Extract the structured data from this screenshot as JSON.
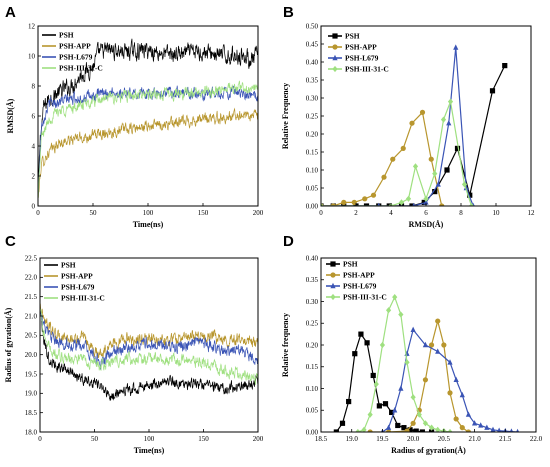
{
  "panels": [
    {
      "id": "A",
      "chart_data": {
        "type": "line",
        "xlabel": "Time(ns)",
        "ylabel": "RMSD(Å)",
        "xlim": [
          0,
          200
        ],
        "ylim": [
          0,
          12
        ],
        "xticks": [
          0,
          50,
          100,
          150,
          200
        ],
        "yticks": [
          0,
          2,
          4,
          6,
          8,
          10,
          12
        ],
        "legend_position": "top-left",
        "grid": false,
        "series": [
          {
            "name": "PSH",
            "color": "#000000",
            "noise": 0.45,
            "x": [
              0,
              2,
              5,
              10,
              20,
              30,
              40,
              50,
              55,
              65,
              80,
              100,
              120,
              150,
              170,
              185,
              195,
              200
            ],
            "y": [
              0.5,
              4.5,
              6.5,
              7.2,
              7.6,
              8.0,
              8.8,
              9.3,
              10.2,
              10.4,
              10.3,
              10.4,
              10.1,
              10.3,
              10.0,
              10.1,
              9.7,
              10.2
            ]
          },
          {
            "name": "PSH-APP",
            "color": "#b8962e",
            "noise": 0.3,
            "x": [
              0,
              3,
              10,
              20,
              35,
              50,
              60,
              80,
              100,
              120,
              150,
              170,
              185,
              200
            ],
            "y": [
              0.4,
              2.8,
              3.6,
              4.2,
              4.5,
              4.7,
              4.9,
              5.1,
              5.3,
              5.5,
              5.8,
              5.9,
              6.1,
              6.0
            ]
          },
          {
            "name": "PSH-L679",
            "color": "#3a54b5",
            "noise": 0.3,
            "x": [
              0,
              3,
              10,
              20,
              35,
              50,
              65,
              80,
              100,
              120,
              150,
              170,
              185,
              200
            ],
            "y": [
              0.4,
              5.5,
              6.8,
              7.0,
              7.2,
              7.3,
              7.6,
              7.5,
              7.5,
              7.6,
              7.5,
              7.6,
              7.4,
              7.3
            ]
          },
          {
            "name": "PSH-III-31-C",
            "color": "#9fe080",
            "noise": 0.3,
            "x": [
              0,
              3,
              10,
              20,
              35,
              50,
              65,
              80,
              100,
              120,
              150,
              170,
              185,
              200
            ],
            "y": [
              0.4,
              4.5,
              5.8,
              6.4,
              6.6,
              6.9,
              7.2,
              7.3,
              7.4,
              7.5,
              7.6,
              7.8,
              7.9,
              7.8
            ]
          }
        ]
      }
    },
    {
      "id": "B",
      "chart_data": {
        "type": "line",
        "xlabel": "RMSD(Å)",
        "ylabel": "Relative Frequency",
        "xlim": [
          0,
          12
        ],
        "ylim": [
          0,
          0.5
        ],
        "xticks": [
          0,
          2,
          4,
          6,
          8,
          10,
          12
        ],
        "yticks": [
          0.0,
          0.05,
          0.1,
          0.15,
          0.2,
          0.25,
          0.3,
          0.35,
          0.4,
          0.45,
          0.5
        ],
        "legend_position": "top-left",
        "grid": false,
        "series": [
          {
            "name": "PSH",
            "color": "#000000",
            "marker": "square",
            "x": [
              0.0,
              0.7,
              1.3,
              2.0,
              2.6,
              3.3,
              3.9,
              4.6,
              5.2,
              5.9,
              6.5,
              7.2,
              7.8,
              8.5,
              9.8,
              10.5
            ],
            "y": [
              0,
              0,
              0,
              0,
              0,
              0,
              0,
              0,
              0,
              0.01,
              0.04,
              0.1,
              0.16,
              0.03,
              0.32,
              0.39
            ]
          },
          {
            "name": "PSH-APP",
            "color": "#b8962e",
            "marker": "circle",
            "x": [
              0.0,
              0.7,
              1.3,
              1.9,
              2.5,
              3.0,
              3.6,
              4.1,
              4.7,
              5.2,
              5.8,
              6.3,
              6.9
            ],
            "y": [
              0,
              0,
              0.01,
              0.01,
              0.02,
              0.03,
              0.08,
              0.13,
              0.16,
              0.23,
              0.26,
              0.13,
              0
            ]
          },
          {
            "name": "PSH-L679",
            "color": "#3a54b5",
            "marker": "triangle",
            "x": [
              0.0,
              3.3,
              4.0,
              5.3,
              6.0,
              6.7,
              7.3,
              7.7,
              8.3,
              8.7
            ],
            "y": [
              0,
              0,
              0,
              0,
              0.01,
              0.06,
              0.23,
              0.44,
              0.05,
              0
            ]
          },
          {
            "name": "PSH-III-31-C",
            "color": "#9fe080",
            "marker": "diamond",
            "x": [
              0.0,
              4.0,
              4.6,
              5.0,
              5.4,
              6.0,
              6.5,
              7.0,
              7.4,
              8.2,
              8.6
            ],
            "y": [
              0,
              0,
              0.01,
              0.02,
              0.11,
              0.02,
              0.09,
              0.24,
              0.29,
              0.06,
              0
            ]
          }
        ]
      }
    },
    {
      "id": "C",
      "chart_data": {
        "type": "line",
        "xlabel": "Time(ns)",
        "ylabel": "Radius of gyration(Å)",
        "xlim": [
          0,
          200
        ],
        "ylim": [
          18.0,
          22.5
        ],
        "xticks": [
          0,
          50,
          100,
          150,
          200
        ],
        "yticks": [
          18.0,
          18.5,
          19.0,
          19.5,
          20.0,
          20.5,
          21.0,
          21.5,
          22.0,
          22.5
        ],
        "legend_position": "top-left",
        "grid": false,
        "series": [
          {
            "name": "PSH",
            "color": "#000000",
            "noise": 0.12,
            "x": [
              0,
              3,
              8,
              15,
              25,
              40,
              55,
              65,
              80,
              100,
              120,
              150,
              170,
              185,
              200
            ],
            "y": [
              21.2,
              20.4,
              19.9,
              19.7,
              19.6,
              19.4,
              19.2,
              18.9,
              19.1,
              19.2,
              19.3,
              19.2,
              19.1,
              19.2,
              19.3
            ]
          },
          {
            "name": "PSH-APP",
            "color": "#b8962e",
            "noise": 0.12,
            "x": [
              0,
              3,
              8,
              15,
              25,
              40,
              55,
              65,
              80,
              100,
              120,
              150,
              170,
              185,
              200
            ],
            "y": [
              21.3,
              21.0,
              20.7,
              20.5,
              20.4,
              20.4,
              20.0,
              20.3,
              20.4,
              20.4,
              20.4,
              20.5,
              20.4,
              20.4,
              20.3
            ]
          },
          {
            "name": "PSH-L679",
            "color": "#3a54b5",
            "noise": 0.13,
            "x": [
              0,
              3,
              8,
              15,
              25,
              40,
              55,
              65,
              80,
              100,
              120,
              150,
              170,
              185,
              200
            ],
            "y": [
              21.3,
              20.8,
              20.5,
              20.3,
              20.3,
              20.2,
              19.8,
              20.0,
              20.2,
              20.3,
              20.2,
              20.3,
              20.1,
              20.1,
              19.9
            ]
          },
          {
            "name": "PSH-III-31-C",
            "color": "#9fe080",
            "noise": 0.12,
            "x": [
              0,
              3,
              8,
              15,
              25,
              40,
              55,
              65,
              80,
              100,
              120,
              150,
              170,
              185,
              200
            ],
            "y": [
              21.2,
              20.6,
              20.2,
              20.0,
              19.9,
              19.9,
              19.7,
              19.8,
              19.9,
              19.9,
              19.9,
              19.8,
              19.6,
              19.5,
              19.4
            ]
          }
        ]
      }
    },
    {
      "id": "D",
      "chart_data": {
        "type": "line",
        "xlabel": "Radius of gyration(Å)",
        "ylabel": "Relative frequency",
        "xlim": [
          18.5,
          22.0
        ],
        "ylim": [
          0,
          0.4
        ],
        "xticks": [
          18.5,
          19.0,
          19.5,
          20.0,
          20.5,
          21.0,
          21.5,
          22.0
        ],
        "yticks": [
          0.0,
          0.05,
          0.1,
          0.15,
          0.2,
          0.25,
          0.3,
          0.35,
          0.4
        ],
        "legend_position": "top-left",
        "grid": false,
        "series": [
          {
            "name": "PSH",
            "color": "#000000",
            "marker": "square",
            "x": [
              18.75,
              18.85,
              18.95,
              19.05,
              19.15,
              19.25,
              19.35,
              19.45,
              19.55,
              19.65,
              19.75,
              19.85,
              19.95,
              20.05,
              20.15,
              20.3
            ],
            "y": [
              0,
              0.02,
              0.07,
              0.18,
              0.225,
              0.205,
              0.13,
              0.06,
              0.065,
              0.045,
              0.015,
              0.01,
              0.005,
              0.002,
              0,
              0
            ]
          },
          {
            "name": "PSH-APP",
            "color": "#b8962e",
            "marker": "circle",
            "x": [
              19.3,
              19.6,
              19.9,
              20.0,
              20.1,
              20.2,
              20.3,
              20.4,
              20.5,
              20.6,
              20.7,
              20.8,
              20.9
            ],
            "y": [
              0,
              0,
              0.002,
              0.02,
              0.05,
              0.12,
              0.2,
              0.255,
              0.2,
              0.09,
              0.03,
              0.01,
              0
            ]
          },
          {
            "name": "PSH-L679",
            "color": "#3a54b5",
            "marker": "triangle",
            "x": [
              19.5,
              19.6,
              19.7,
              19.8,
              19.9,
              20.0,
              20.2,
              20.4,
              20.6,
              20.7,
              20.8,
              20.9,
              21.0,
              21.1,
              21.2,
              21.3,
              21.4,
              21.5,
              21.6,
              21.7
            ],
            "y": [
              0,
              0.01,
              0.05,
              0.1,
              0.18,
              0.235,
              0.2,
              0.185,
              0.16,
              0.12,
              0.085,
              0.04,
              0.02,
              0.015,
              0.01,
              0.005,
              0.003,
              0.002,
              0.001,
              0
            ]
          },
          {
            "name": "PSH-III-31-C",
            "color": "#9fe080",
            "marker": "diamond",
            "x": [
              19.1,
              19.2,
              19.3,
              19.4,
              19.5,
              19.6,
              19.7,
              19.8,
              19.9,
              20.0,
              20.1,
              20.2,
              20.3,
              20.4,
              20.5,
              20.6
            ],
            "y": [
              0,
              0.005,
              0.04,
              0.11,
              0.2,
              0.28,
              0.31,
              0.27,
              0.16,
              0.08,
              0.04,
              0.02,
              0.01,
              0.005,
              0.002,
              0
            ]
          }
        ]
      }
    }
  ]
}
